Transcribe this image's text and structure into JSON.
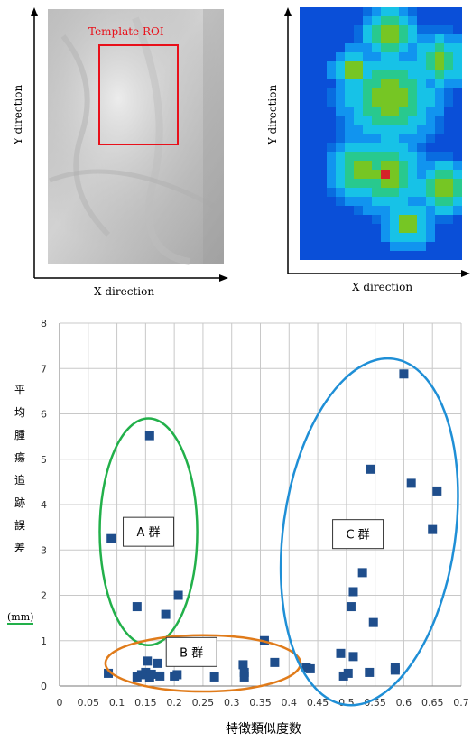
{
  "figures": {
    "left": {
      "roi_label": "Template ROI",
      "x_label": "X direction",
      "y_label": "Y direction"
    },
    "right": {
      "x_label": "X direction",
      "y_label": "Y direction"
    }
  },
  "chart_data": {
    "type": "scatter",
    "xlabel": "特徴類似度数",
    "ylabel_chars": [
      "平",
      "均",
      "腫",
      "瘍",
      "追",
      "跡",
      "誤",
      "差"
    ],
    "ylabel_unit": "(mm)",
    "xlim": [
      0,
      0.7
    ],
    "ylim": [
      0,
      8
    ],
    "x_ticks": [
      "0",
      "0.05",
      "0.1",
      "0.15",
      "0.2",
      "0.25",
      "0.3",
      "0.35",
      "0.4",
      "0.45",
      "0.5",
      "0.55",
      "0.6",
      "0.65",
      "0.7"
    ],
    "y_ticks": [
      "0",
      "1",
      "2",
      "3",
      "4",
      "5",
      "6",
      "7",
      "8"
    ],
    "grid": true,
    "marker_color": "#1f4e8c",
    "points": [
      {
        "x": 0.09,
        "y": 3.25
      },
      {
        "x": 0.085,
        "y": 0.28
      },
      {
        "x": 0.135,
        "y": 1.75
      },
      {
        "x": 0.157,
        "y": 5.52
      },
      {
        "x": 0.185,
        "y": 1.58
      },
      {
        "x": 0.207,
        "y": 2.0
      },
      {
        "x": 0.135,
        "y": 0.2
      },
      {
        "x": 0.143,
        "y": 0.25
      },
      {
        "x": 0.15,
        "y": 0.3
      },
      {
        "x": 0.153,
        "y": 0.55
      },
      {
        "x": 0.157,
        "y": 0.18
      },
      {
        "x": 0.16,
        "y": 0.26
      },
      {
        "x": 0.17,
        "y": 0.5
      },
      {
        "x": 0.175,
        "y": 0.22
      },
      {
        "x": 0.2,
        "y": 0.22
      },
      {
        "x": 0.205,
        "y": 0.25
      },
      {
        "x": 0.27,
        "y": 0.2
      },
      {
        "x": 0.32,
        "y": 0.47
      },
      {
        "x": 0.322,
        "y": 0.3
      },
      {
        "x": 0.322,
        "y": 0.2
      },
      {
        "x": 0.357,
        "y": 1.0
      },
      {
        "x": 0.375,
        "y": 0.52
      },
      {
        "x": 0.43,
        "y": 0.4
      },
      {
        "x": 0.437,
        "y": 0.38
      },
      {
        "x": 0.49,
        "y": 0.72
      },
      {
        "x": 0.495,
        "y": 0.22
      },
      {
        "x": 0.503,
        "y": 0.28
      },
      {
        "x": 0.508,
        "y": 1.75
      },
      {
        "x": 0.512,
        "y": 2.08
      },
      {
        "x": 0.512,
        "y": 0.65
      },
      {
        "x": 0.528,
        "y": 2.5
      },
      {
        "x": 0.54,
        "y": 0.3
      },
      {
        "x": 0.542,
        "y": 4.78
      },
      {
        "x": 0.547,
        "y": 1.4
      },
      {
        "x": 0.585,
        "y": 0.4
      },
      {
        "x": 0.585,
        "y": 0.35
      },
      {
        "x": 0.6,
        "y": 6.88
      },
      {
        "x": 0.613,
        "y": 4.47
      },
      {
        "x": 0.65,
        "y": 3.45
      },
      {
        "x": 0.658,
        "y": 4.3
      }
    ],
    "groups": [
      {
        "label": "A 群",
        "color": "#22b04a",
        "cx": 0.155,
        "cy": 3.4,
        "rx": 0.085,
        "ry": 2.5
      },
      {
        "label": "B 群",
        "color": "#e07b1a",
        "cx": 0.25,
        "cy": 0.5,
        "rx": 0.17,
        "ry": 0.62
      },
      {
        "label": "C 群",
        "color": "#1f8fd6",
        "cx": 0.54,
        "cy": 3.4,
        "rx": 0.15,
        "ry": 3.85,
        "rot": 8
      }
    ]
  }
}
